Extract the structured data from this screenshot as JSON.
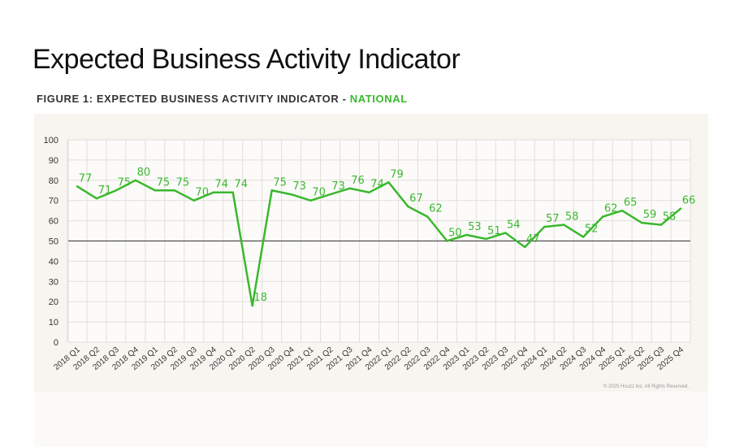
{
  "header": {
    "title": "Expected Business Activity Indicator",
    "subtitle_prefix": "FIGURE 1: EXPECTED BUSINESS ACTIVITY INDICATOR - ",
    "subtitle_highlight": "NATIONAL"
  },
  "copyright": "© 2025 Houzz Inc. All Rights Reserved.",
  "colors": {
    "line": "#3ab82e",
    "reference": "#333333",
    "panel": "#f8f5f1"
  },
  "chart_data": {
    "type": "line",
    "title": "",
    "xlabel": "",
    "ylabel": "",
    "ylim": [
      0,
      100
    ],
    "yticks": [
      0,
      10,
      20,
      30,
      40,
      50,
      60,
      70,
      80,
      90,
      100
    ],
    "grid": true,
    "reference_line": 50,
    "categories": [
      "2018 Q1",
      "2018 Q2",
      "2018 Q3",
      "2018 Q4",
      "2019 Q1",
      "2019 Q2",
      "2019 Q3",
      "2019 Q4",
      "2020 Q1",
      "2020 Q2",
      "2020 Q3",
      "2020 Q4",
      "2021 Q1",
      "2021 Q2",
      "2021 Q3",
      "2021 Q4",
      "2022 Q1",
      "2022 Q2",
      "2022 Q3",
      "2022 Q4",
      "2023 Q1",
      "2023 Q2",
      "2023 Q3",
      "2023 Q4",
      "2024 Q1",
      "2024 Q2",
      "2024 Q3",
      "2024 Q4",
      "2025 Q1",
      "2025 Q2",
      "2025 Q3",
      "2025 Q4"
    ],
    "values": [
      77,
      71,
      75,
      80,
      75,
      75,
      70,
      74,
      74,
      18,
      75,
      73,
      70,
      73,
      76,
      74,
      79,
      67,
      62,
      50,
      53,
      51,
      54,
      47,
      57,
      58,
      52,
      62,
      65,
      59,
      58,
      66
    ]
  }
}
